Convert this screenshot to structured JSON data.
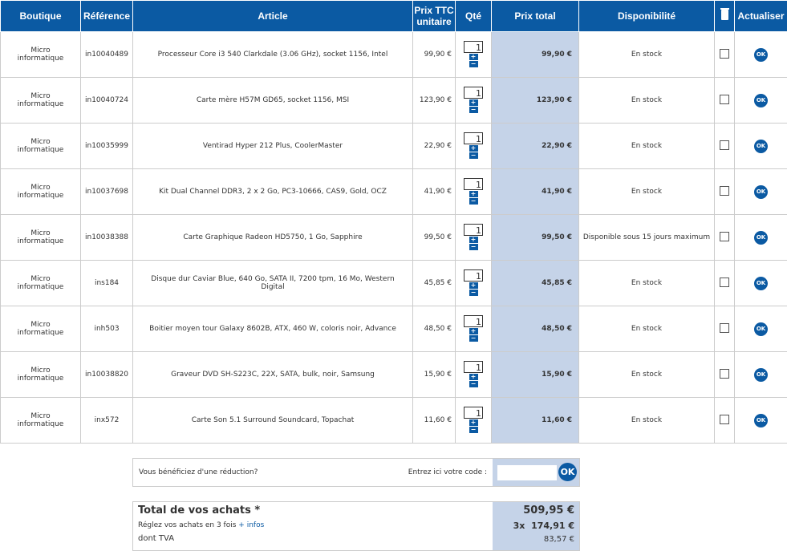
{
  "headers": {
    "boutique": "Boutique",
    "reference": "Référence",
    "article": "Article",
    "unit_price": "Prix TTC unitaire",
    "qty": "Qté",
    "total": "Prix total",
    "availability": "Disponibilité",
    "delete_icon": "trash-icon",
    "refresh": "Actualiser"
  },
  "rows": [
    {
      "shop": "Micro informatique",
      "ref": "in10040489",
      "article": "Processeur Core i3 540 Clarkdale (3.06 GHz), socket 1156, Intel",
      "unit": "99,90 €",
      "qty": "1",
      "total": "99,90 €",
      "avail": "En stock"
    },
    {
      "shop": "Micro informatique",
      "ref": "in10040724",
      "article": "Carte mère H57M GD65, socket 1156, MSI",
      "unit": "123,90 €",
      "qty": "1",
      "total": "123,90 €",
      "avail": "En stock"
    },
    {
      "shop": "Micro informatique",
      "ref": "in10035999",
      "article": "Ventirad Hyper 212 Plus, CoolerMaster",
      "unit": "22,90 €",
      "qty": "1",
      "total": "22,90 €",
      "avail": "En stock"
    },
    {
      "shop": "Micro informatique",
      "ref": "in10037698",
      "article": "Kit Dual Channel DDR3, 2 x 2 Go, PC3-10666, CAS9, Gold, OCZ",
      "unit": "41,90 €",
      "qty": "1",
      "total": "41,90 €",
      "avail": "En stock"
    },
    {
      "shop": "Micro informatique",
      "ref": "in10038388",
      "article": "Carte Graphique Radeon HD5750, 1 Go, Sapphire",
      "unit": "99,50 €",
      "qty": "1",
      "total": "99,50 €",
      "avail": "Disponible sous 15 jours maximum"
    },
    {
      "shop": "Micro informatique",
      "ref": "ins184",
      "article": "Disque dur Caviar Blue, 640 Go, SATA II, 7200 tpm, 16 Mo, Western Digital",
      "unit": "45,85 €",
      "qty": "1",
      "total": "45,85 €",
      "avail": "En stock"
    },
    {
      "shop": "Micro informatique",
      "ref": "inh503",
      "article": "Boitier moyen tour Galaxy 8602B, ATX, 460 W, coloris noir, Advance",
      "unit": "48,50 €",
      "qty": "1",
      "total": "48,50 €",
      "avail": "En stock"
    },
    {
      "shop": "Micro informatique",
      "ref": "in10038820",
      "article": "Graveur DVD SH-S223C, 22X, SATA, bulk, noir, Samsung",
      "unit": "15,90 €",
      "qty": "1",
      "total": "15,90 €",
      "avail": "En stock"
    },
    {
      "shop": "Micro informatique",
      "ref": "inx572",
      "article": "Carte Son 5.1 Surround Soundcard, Topachat",
      "unit": "11,60 €",
      "qty": "1",
      "total": "11,60 €",
      "avail": "En stock"
    }
  ],
  "row_controls": {
    "plus": "+",
    "minus": "−",
    "ok": "OK"
  },
  "promo": {
    "question": "Vous bénéficiez d'une réduction?",
    "code_label": "Entrez ici votre code :",
    "code_value": "",
    "ok": "OK"
  },
  "totals": {
    "title": "Total de vos achats *",
    "total": "509,95 €",
    "installments_text": "Réglez vos achats en 3 fois",
    "infos_link": "+ infos",
    "installments_value": "3x  174,91 €",
    "vat_label": "dont TVA",
    "vat_value": "83,57 €"
  },
  "colors": {
    "header": "#0b5aa3",
    "total_column": "#c5d3e8"
  }
}
